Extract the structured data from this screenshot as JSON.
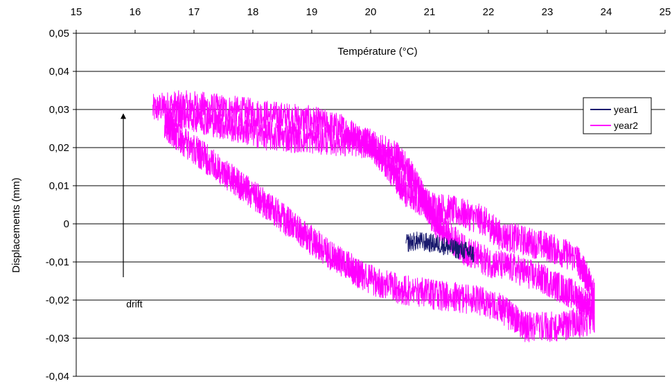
{
  "chart_data": {
    "type": "line",
    "xlabel": "Température (°C)",
    "ylabel": "Displacements (mm)",
    "x_axis_position": "top",
    "xlim": [
      15,
      25
    ],
    "ylim": [
      -0.04,
      0.05
    ],
    "x_ticks": [
      "15",
      "16",
      "17",
      "18",
      "19",
      "20",
      "21",
      "22",
      "23",
      "24",
      "25"
    ],
    "y_ticks": [
      "0,05",
      "0,04",
      "0,03",
      "0,02",
      "0,01",
      "0",
      "-0,01",
      "-0,02",
      "-0,03",
      "-0,04"
    ],
    "y_tick_values": [
      0.05,
      0.04,
      0.03,
      0.02,
      0.01,
      0,
      -0.01,
      -0.02,
      -0.03,
      -0.04
    ],
    "grid": "horizontal",
    "legend_position": "right",
    "series": [
      {
        "name": "year1",
        "color": "#1a1a6e",
        "noise": 0.0025,
        "points": [
          [
            20.6,
            -0.005
          ],
          [
            20.8,
            -0.0045
          ],
          [
            21.0,
            -0.005
          ],
          [
            21.2,
            -0.0055
          ],
          [
            21.4,
            -0.0065
          ],
          [
            21.6,
            -0.007
          ],
          [
            21.75,
            -0.008
          ]
        ]
      },
      {
        "name": "year2",
        "color": "#ff00ff",
        "noise": 0.004,
        "points": [
          [
            16.3,
            0.03
          ],
          [
            16.6,
            0.031
          ],
          [
            17.0,
            0.031
          ],
          [
            17.5,
            0.03
          ],
          [
            18.0,
            0.029
          ],
          [
            18.5,
            0.028
          ],
          [
            19.0,
            0.027
          ],
          [
            19.5,
            0.025
          ],
          [
            20.0,
            0.021
          ],
          [
            20.2,
            0.017
          ],
          [
            20.4,
            0.013
          ],
          [
            20.6,
            0.008
          ],
          [
            21.0,
            0.005
          ],
          [
            21.5,
            0.003
          ],
          [
            21.9,
            0.001
          ],
          [
            22.2,
            -0.003
          ],
          [
            22.5,
            -0.004
          ],
          [
            23.0,
            -0.006
          ],
          [
            23.5,
            -0.009
          ],
          [
            23.8,
            -0.018
          ],
          [
            23.8,
            -0.025
          ],
          [
            23.2,
            -0.027
          ],
          [
            22.6,
            -0.027
          ],
          [
            22.2,
            -0.022
          ],
          [
            21.8,
            -0.02
          ],
          [
            21.3,
            -0.019
          ],
          [
            20.8,
            -0.018
          ],
          [
            20.2,
            -0.016
          ],
          [
            19.8,
            -0.013
          ],
          [
            19.3,
            -0.008
          ],
          [
            18.8,
            -0.002
          ],
          [
            18.3,
            0.004
          ],
          [
            17.8,
            0.01
          ],
          [
            17.3,
            0.016
          ],
          [
            16.8,
            0.022
          ],
          [
            16.5,
            0.026
          ],
          [
            16.8,
            0.029
          ],
          [
            17.5,
            0.026
          ],
          [
            18.3,
            0.023
          ],
          [
            19.3,
            0.022
          ],
          [
            20.0,
            0.021
          ],
          [
            20.5,
            0.017
          ],
          [
            20.8,
            0.01
          ],
          [
            21.1,
            0.0
          ],
          [
            21.6,
            -0.007
          ],
          [
            22.0,
            -0.01
          ],
          [
            22.5,
            -0.012
          ],
          [
            23.0,
            -0.015
          ],
          [
            23.5,
            -0.019
          ],
          [
            23.8,
            -0.023
          ]
        ]
      }
    ],
    "annotations": [
      {
        "text": "drift",
        "x": 15.85,
        "y": -0.021
      },
      {
        "type": "arrow",
        "x": 15.8,
        "y_from": -0.014,
        "y_to": 0.029
      }
    ]
  }
}
